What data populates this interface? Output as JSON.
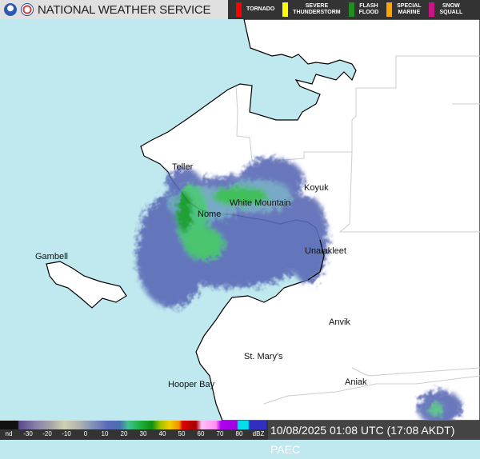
{
  "header": {
    "title": "NATIONAL WEATHER SERVICE",
    "logos": [
      "noaa-logo",
      "nws-logo"
    ],
    "warnings": [
      {
        "label": "TORNADO",
        "color": "#ff0000"
      },
      {
        "label": "SEVERE\nTHUNDERSTORM",
        "color": "#ffff00"
      },
      {
        "label": "FLASH\nFLOOD",
        "color": "#228b22"
      },
      {
        "label": "SPECIAL\nMARINE",
        "color": "#ffa500"
      },
      {
        "label": "SNOW\nSQUALL",
        "color": "#c71585"
      }
    ]
  },
  "map": {
    "water_color": "#c0e8ef",
    "land_color": "#ffffff",
    "places": [
      {
        "name": "Teller"
      },
      {
        "name": "Koyuk"
      },
      {
        "name": "White Mountain"
      },
      {
        "name": "Nome"
      },
      {
        "name": "Unalakleet"
      },
      {
        "name": "Gambell"
      },
      {
        "name": "Anvik"
      },
      {
        "name": "St. Mary's"
      },
      {
        "name": "Hooper Bay"
      },
      {
        "name": "Aniak"
      }
    ]
  },
  "legend": {
    "labels": [
      "nd",
      "-30",
      "-20",
      "-10",
      "0",
      "10",
      "20",
      "30",
      "40",
      "50",
      "60",
      "70",
      "80",
      "dBZ"
    ]
  },
  "timestamp": "10/08/2025 01:08 UTC (17:08 AKDT)  PAEC"
}
